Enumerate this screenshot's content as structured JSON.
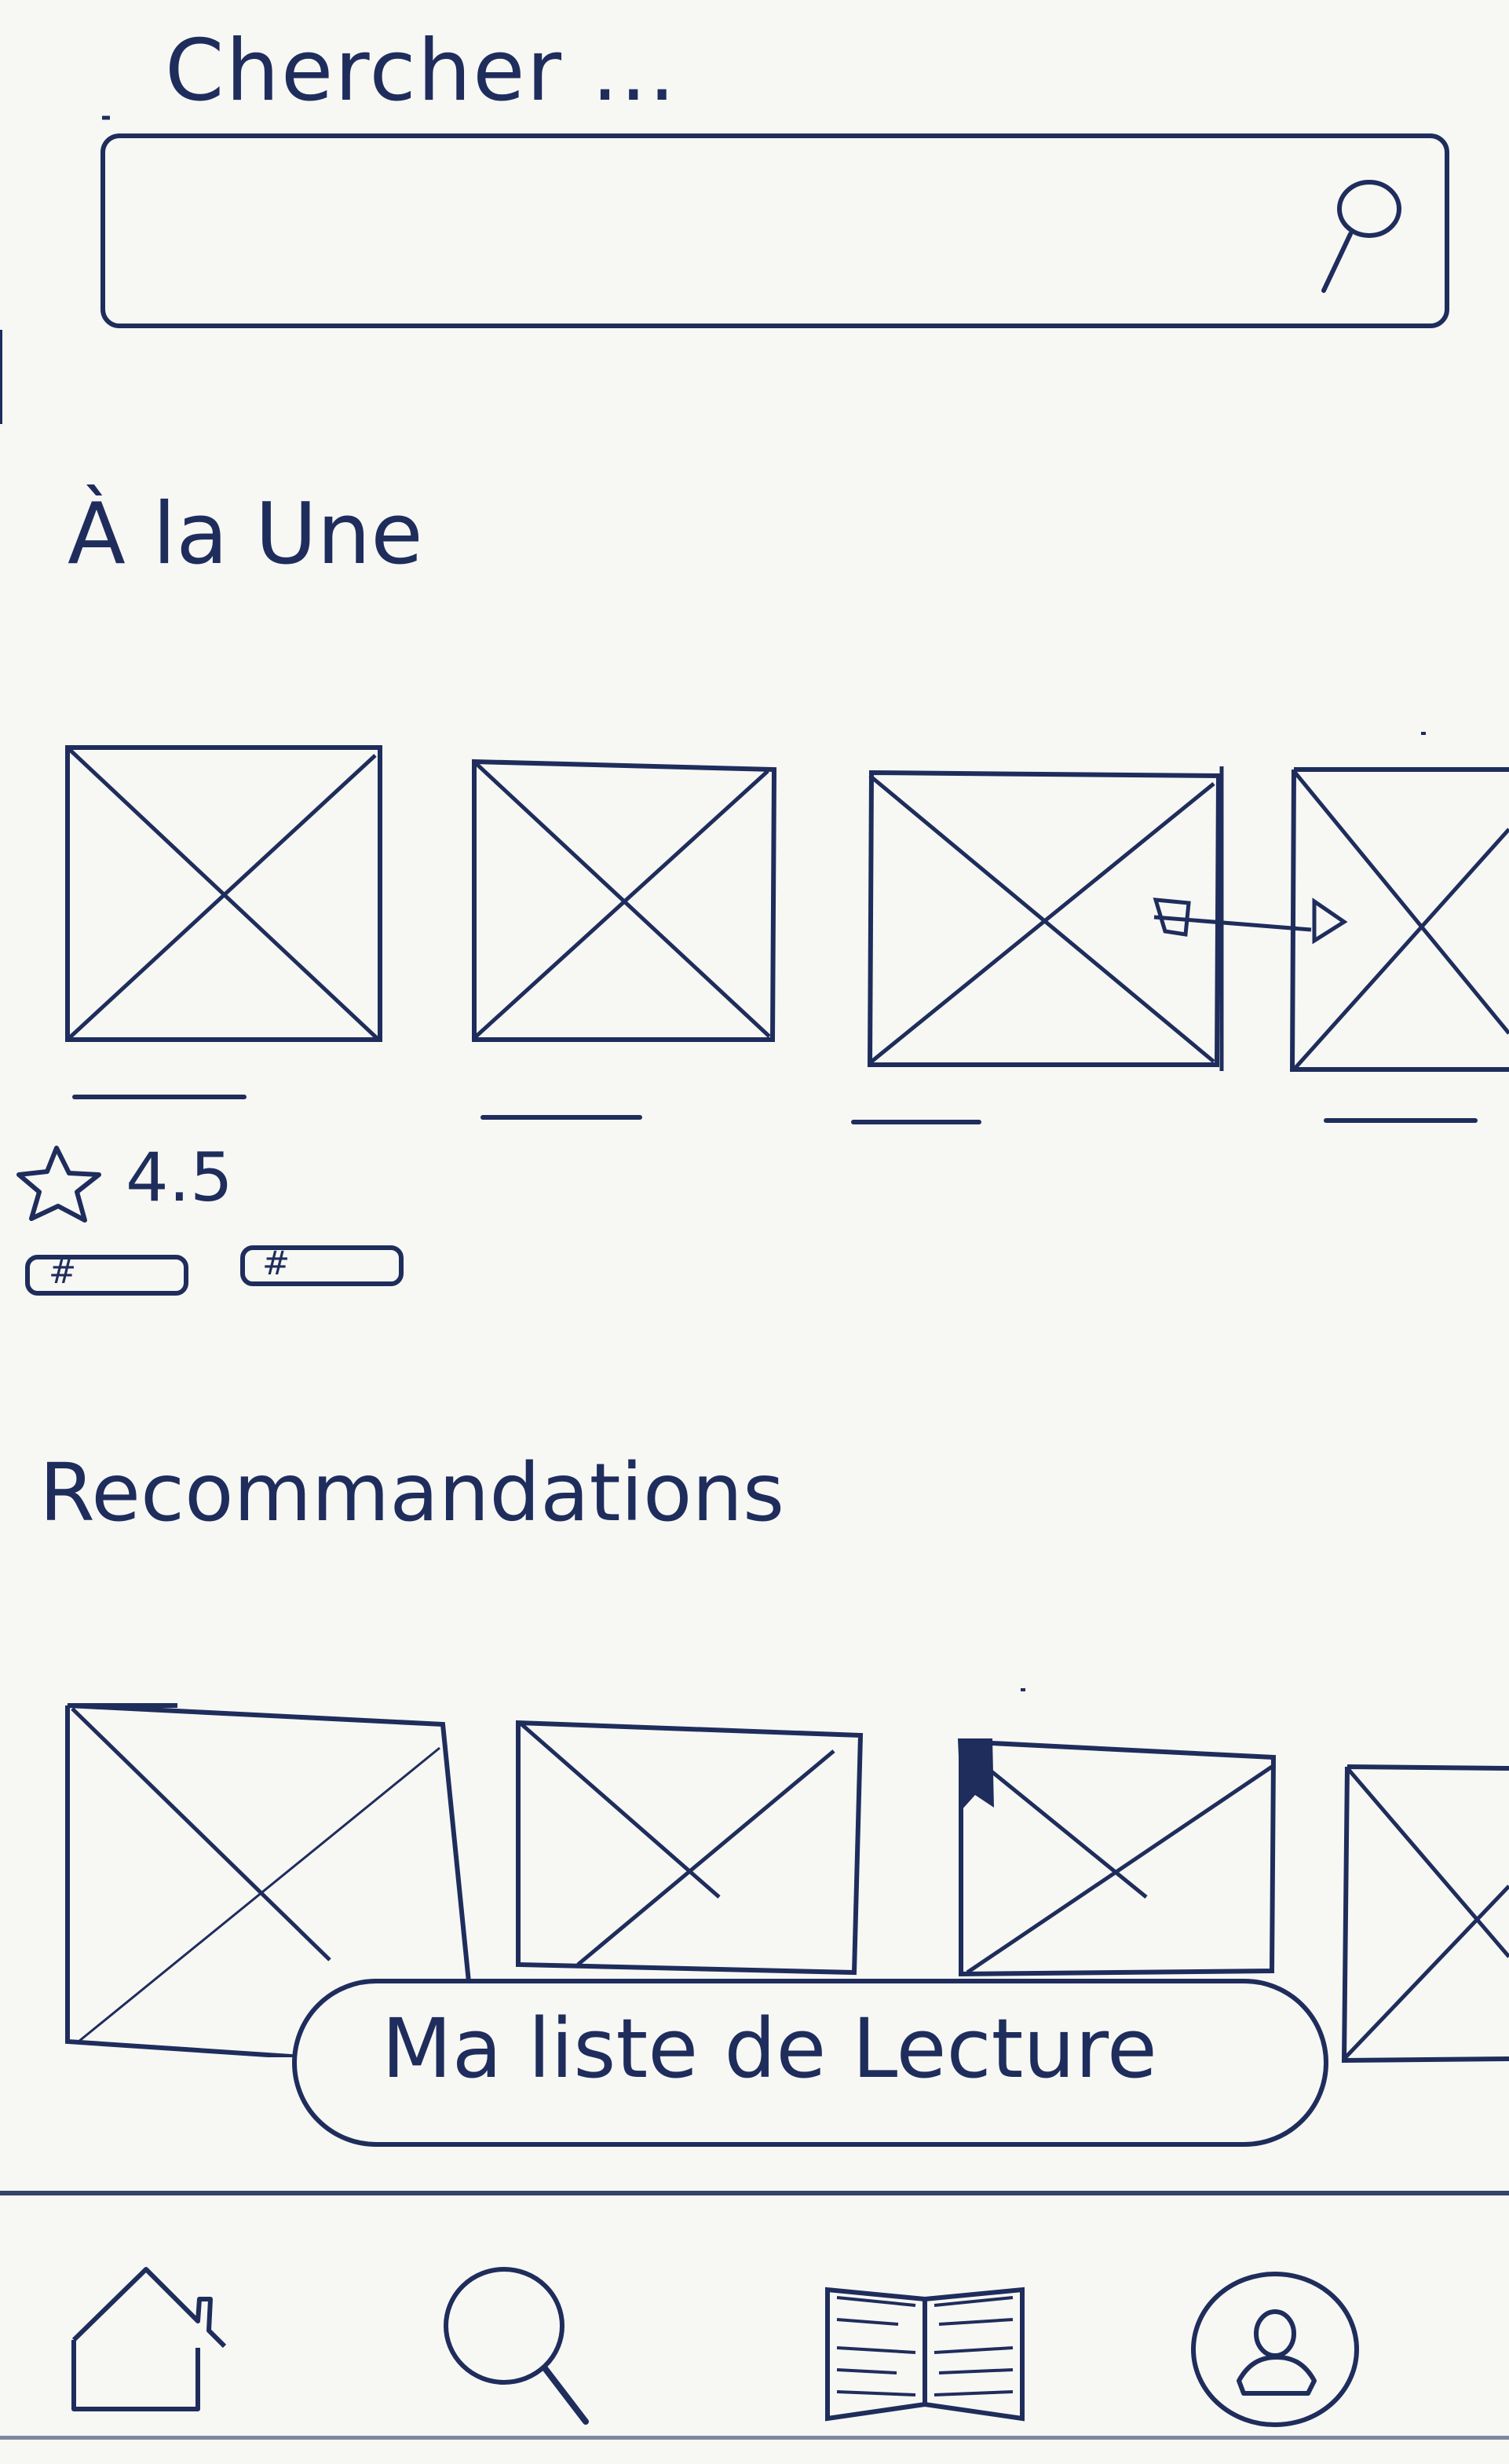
{
  "search": {
    "label": "Chercher ..."
  },
  "sections": {
    "featured_title": "À la Une",
    "recommendations_title": "Recommandations"
  },
  "featured": {
    "rating_value": "4.5",
    "tag_marks": [
      "#",
      "#"
    ]
  },
  "reading_list": {
    "label": "Ma liste de Lecture"
  },
  "nav": {
    "items": [
      {
        "name": "home-icon"
      },
      {
        "name": "search-icon"
      },
      {
        "name": "book-icon"
      },
      {
        "name": "profile-icon"
      }
    ]
  },
  "colors": {
    "ink": "#1f2d5c",
    "paper": "#f7f7f4"
  }
}
